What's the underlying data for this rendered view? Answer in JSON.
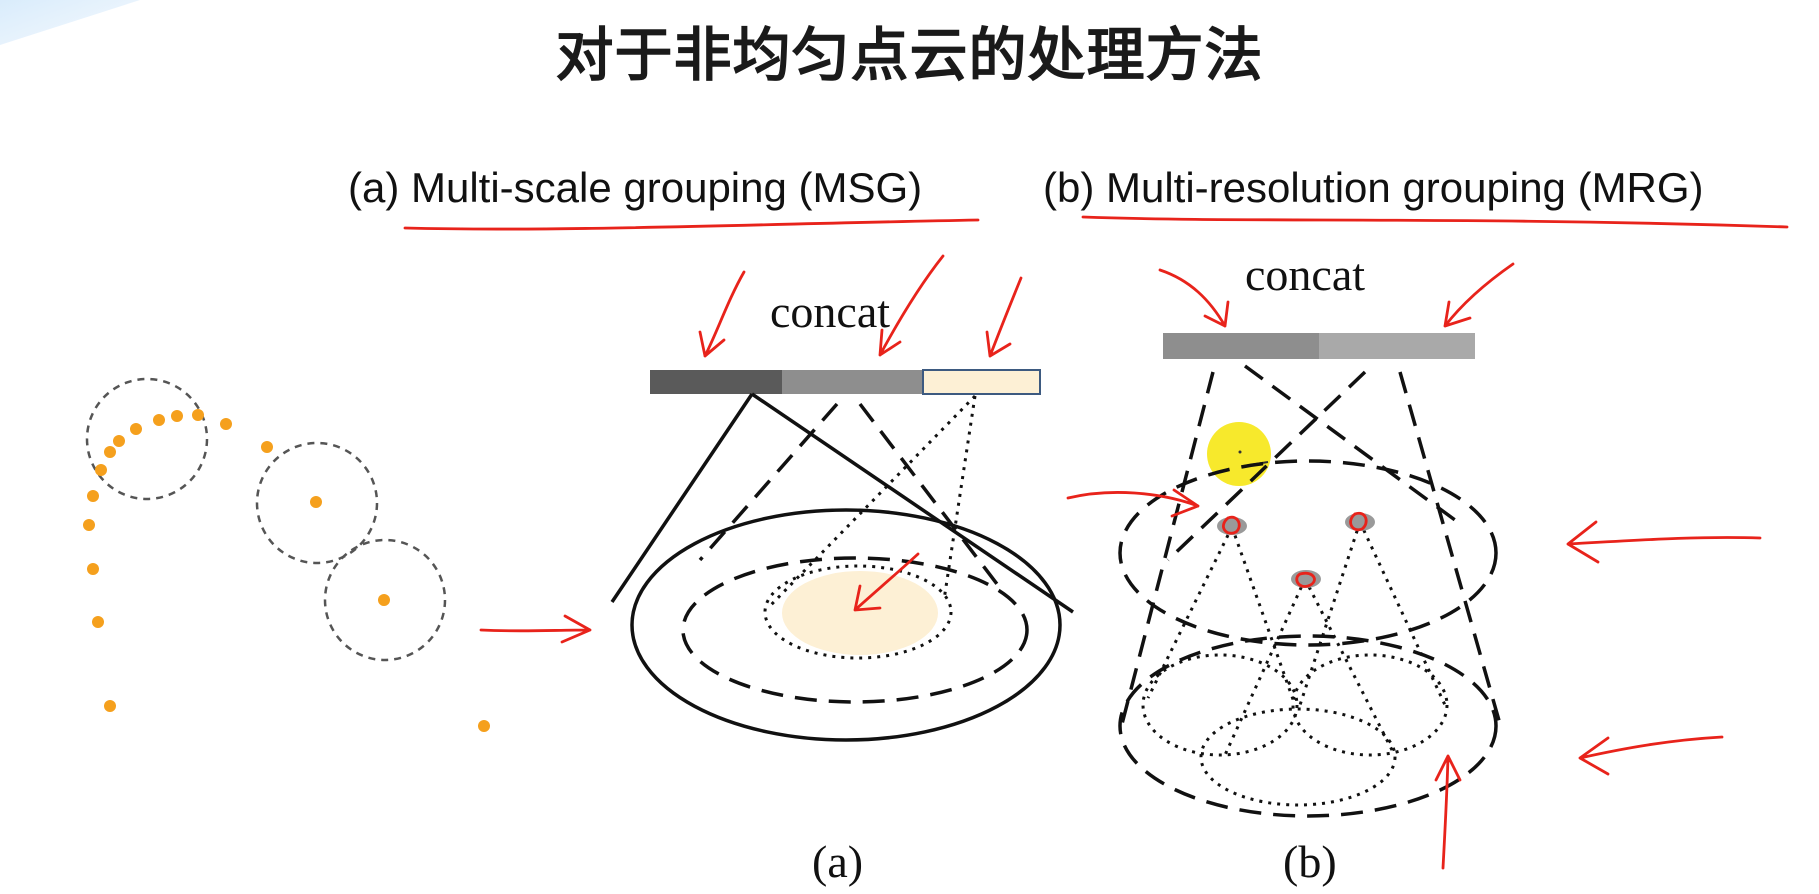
{
  "title": "对于非均匀点云的处理方法",
  "panels": {
    "a": {
      "heading": "(a) Multi-scale grouping (MSG)",
      "concat_label": "concat",
      "sublabel": "(a)"
    },
    "b": {
      "heading": "(b) Multi-resolution grouping (MRG)",
      "concat_label": "concat",
      "sublabel": "(b)"
    }
  },
  "colors": {
    "annotation": "#e8231b",
    "point": "#f5a01d",
    "highlight": "#fdf0d5",
    "feature_dark": "#5a5a5a",
    "feature_mid": "#8e8e8e",
    "feature_light": "#a9a9a9",
    "yellow_dot": "#f7e92c"
  }
}
